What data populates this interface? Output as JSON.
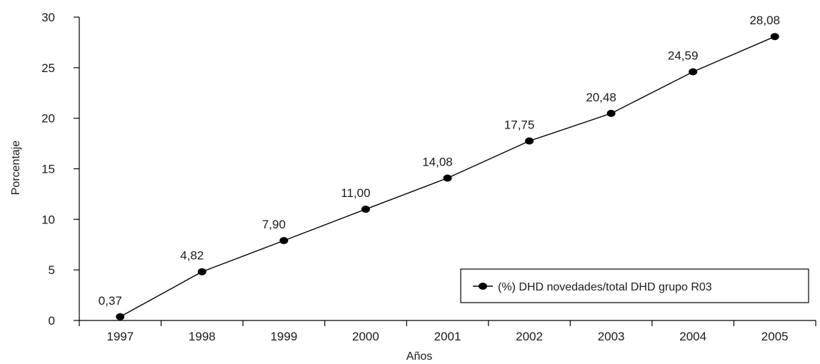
{
  "chart_data": {
    "type": "line",
    "title": "",
    "xlabel": "Años",
    "ylabel": "Porcentaje",
    "categories": [
      "1997",
      "1998",
      "1999",
      "2000",
      "2001",
      "2002",
      "2003",
      "2004",
      "2005"
    ],
    "series": [
      {
        "name": "(%) DHD novedades/total DHD grupo R03",
        "values": [
          0.37,
          4.82,
          7.9,
          11.0,
          14.08,
          17.75,
          20.48,
          24.59,
          28.08
        ],
        "data_labels": [
          "0,37",
          "4,82",
          "7,90",
          "11,00",
          "14,08",
          "17,75",
          "20,48",
          "24,59",
          "28,08"
        ],
        "color": "#000000"
      }
    ],
    "ylim": [
      0,
      30
    ],
    "yticks": [
      0,
      5,
      10,
      15,
      20,
      25,
      30
    ],
    "ytick_labels": [
      "0",
      "5",
      "10",
      "15",
      "20",
      "25",
      "30"
    ],
    "grid": false,
    "legend_position": "bottom-right"
  }
}
